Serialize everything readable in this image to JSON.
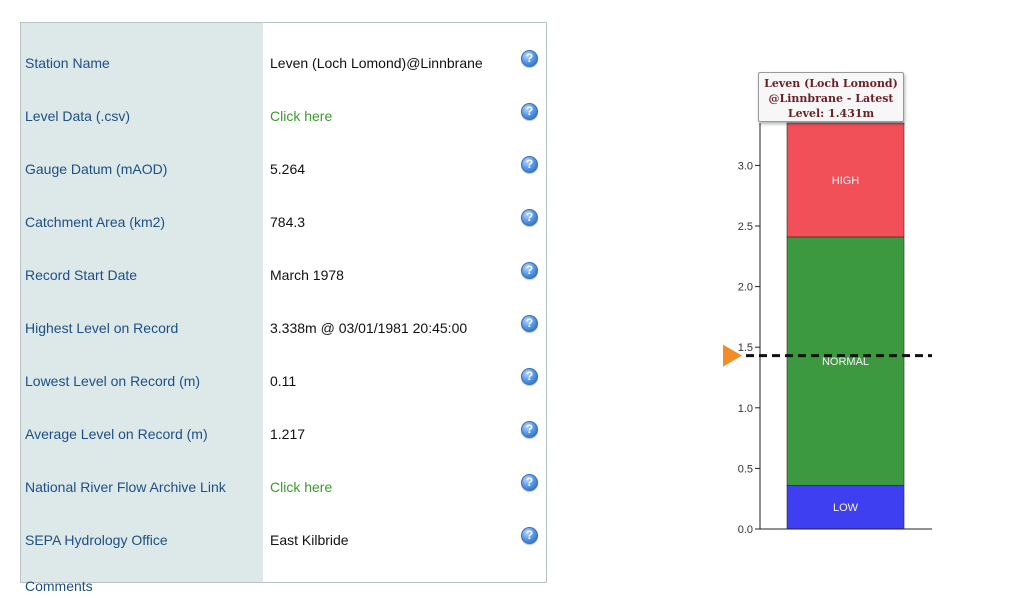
{
  "rows": [
    {
      "label": "Station Name",
      "value": "Leven (Loch Lomond)@Linnbrane",
      "link": false
    },
    {
      "label": "Level Data (.csv)",
      "value": "Click here",
      "link": true
    },
    {
      "label": "Gauge Datum (mAOD)",
      "value": "5.264",
      "link": false
    },
    {
      "label": "Catchment Area (km2)",
      "value": "784.3",
      "link": false
    },
    {
      "label": "Record Start Date",
      "value": "March 1978",
      "link": false
    },
    {
      "label": "Highest Level on Record",
      "value": "3.338m @ 03/01/1981 20:45:00",
      "link": false
    },
    {
      "label": "Lowest Level on Record (m)",
      "value": "0.11",
      "link": false
    },
    {
      "label": "Average Level on Record (m)",
      "value": "1.217",
      "link": false
    },
    {
      "label": "National River Flow Archive Link",
      "value": "Click here",
      "link": true
    },
    {
      "label": "SEPA Hydrology Office",
      "value": "East Kilbride",
      "link": false
    }
  ],
  "comments_label": "Comments",
  "help_glyph": "?",
  "colors": {
    "label_bg": "#dde8e9",
    "label_text": "#1d4f86",
    "link_text": "#3c9a2e",
    "high_band": "#f25058",
    "normal_band": "#3d993f",
    "low_band": "#3f3ff2",
    "marker": "#f28c28"
  },
  "chart_data": {
    "type": "bar",
    "tooltip_lines": [
      "Leven (Loch Lomond)",
      "@Linnbrane - Latest",
      "Level: 1.431m"
    ],
    "ylim": [
      0,
      3.35
    ],
    "yticks": [
      0.0,
      0.5,
      1.0,
      1.5,
      2.0,
      2.5,
      3.0
    ],
    "ytick_labels": [
      "0.0",
      "0.5",
      "1.0",
      "1.5",
      "2.0",
      "2.5",
      "3.0"
    ],
    "bands": [
      {
        "name": "LOW",
        "from": 0.0,
        "to": 0.36,
        "color": "#3f3ff2"
      },
      {
        "name": "NORMAL",
        "from": 0.36,
        "to": 2.41,
        "color": "#3d993f"
      },
      {
        "name": "HIGH",
        "from": 2.41,
        "to": 3.35,
        "color": "#f25058"
      }
    ],
    "latest_level": 1.431
  }
}
